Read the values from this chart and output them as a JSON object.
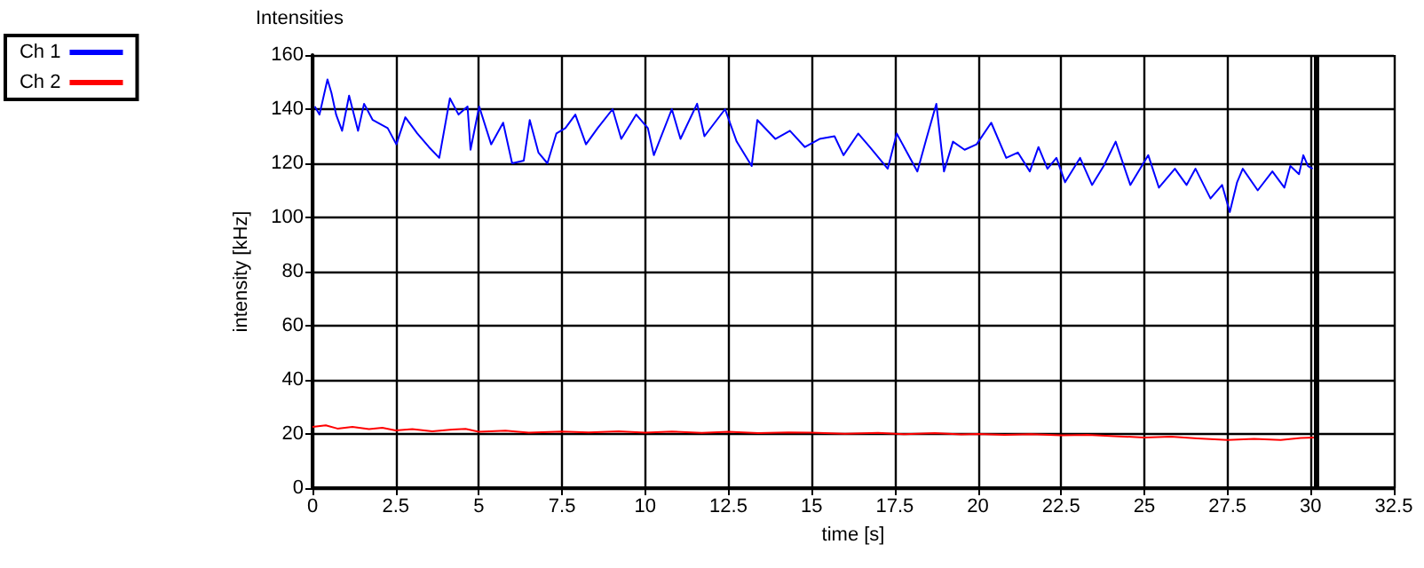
{
  "chart_data": {
    "type": "line",
    "title": "Intensities",
    "xlabel": "time [s]",
    "ylabel": "intensity [kHz]",
    "xlim": [
      0,
      32.5
    ],
    "xticks": [
      0,
      2.5,
      5,
      7.5,
      10,
      12.5,
      15,
      17.5,
      20,
      22.5,
      25,
      27.5,
      30,
      32.5
    ],
    "ylim": [
      0,
      160
    ],
    "yticks": [
      0,
      20,
      40,
      60,
      80,
      100,
      120,
      140,
      160
    ],
    "grid": true,
    "legend": "top left",
    "marker": "none",
    "line_style": "solid",
    "ref_lines": [
      {
        "axis": "x",
        "value": 30.15,
        "color": "#000000"
      }
    ],
    "series": [
      {
        "name": "Ch 1",
        "color": "#0000ff",
        "x": [
          0.07,
          0.21,
          0.45,
          0.57,
          0.71,
          0.89,
          1.1,
          1.37,
          1.55,
          1.81,
          2.26,
          2.52,
          2.79,
          3.15,
          3.5,
          3.81,
          4.13,
          4.39,
          4.66,
          4.75,
          5.01,
          5.37,
          5.73,
          6.0,
          6.35,
          6.53,
          6.79,
          7.06,
          7.33,
          7.6,
          7.9,
          8.22,
          8.57,
          9.02,
          9.28,
          9.73,
          10.08,
          10.26,
          10.8,
          11.06,
          11.56,
          11.78,
          12.4,
          12.75,
          13.2,
          13.37,
          13.91,
          14.35,
          14.8,
          15.24,
          15.69,
          15.96,
          16.4,
          16.75,
          17.29,
          17.56,
          18.18,
          18.45,
          18.75,
          18.98,
          19.25,
          19.6,
          19.96,
          20.4,
          20.85,
          21.2,
          21.56,
          21.82,
          22.09,
          22.36,
          22.62,
          23.07,
          23.43,
          23.78,
          24.14,
          24.58,
          25.12,
          25.44,
          25.92,
          26.27,
          26.54,
          26.99,
          27.34,
          27.57,
          27.79,
          27.96,
          28.41,
          28.85,
          29.21,
          29.39,
          29.65,
          29.78,
          29.92,
          30.06
        ],
        "values": [
          141,
          138,
          151,
          146,
          138,
          132,
          145,
          132,
          142,
          136,
          133,
          127,
          137,
          131,
          126,
          122,
          144,
          138,
          141,
          125,
          141,
          127,
          135,
          120,
          121,
          136,
          124,
          120,
          131,
          133,
          138,
          127,
          133,
          140,
          129,
          138,
          133,
          123,
          140,
          129,
          142,
          130,
          140,
          128,
          119,
          136,
          129,
          132,
          126,
          129,
          130,
          123,
          131,
          126,
          118,
          131,
          117,
          129,
          142,
          117,
          128,
          125,
          127,
          135,
          122,
          124,
          117,
          126,
          118,
          122,
          113,
          122,
          112,
          119,
          128,
          112,
          123,
          111,
          118,
          112,
          118,
          107,
          112,
          102,
          113,
          118,
          110,
          117,
          111,
          119,
          116,
          123,
          119,
          118
        ]
      },
      {
        "name": "Ch 2",
        "color": "#ff0000",
        "x": [
          0,
          0.4,
          0.75,
          1.2,
          1.7,
          2.1,
          2.5,
          3.0,
          3.6,
          4.2,
          4.6,
          5.0,
          5.8,
          6.5,
          7.5,
          8.3,
          9.2,
          10,
          10.8,
          11.7,
          12.5,
          13.4,
          14.3,
          15,
          16,
          17,
          17.8,
          18.7,
          19.5,
          20,
          20.8,
          21.6,
          22.5,
          23.3,
          24.1,
          25,
          25.8,
          26.6,
          27.5,
          28.3,
          29.1,
          29.7,
          30.1
        ],
        "values": [
          22.6,
          23.2,
          22,
          22.6,
          21.8,
          22.3,
          21.3,
          21.8,
          21,
          21.6,
          21.9,
          20.8,
          21.2,
          20.5,
          20.9,
          20.6,
          21,
          20.5,
          20.9,
          20.4,
          20.8,
          20.3,
          20.6,
          20.5,
          20.1,
          20.4,
          19.9,
          20.3,
          19.8,
          20,
          19.7,
          19.9,
          19.5,
          19.7,
          19.2,
          18.7,
          19,
          18.4,
          17.8,
          18.2,
          17.8,
          18.5,
          18.7
        ]
      }
    ]
  }
}
